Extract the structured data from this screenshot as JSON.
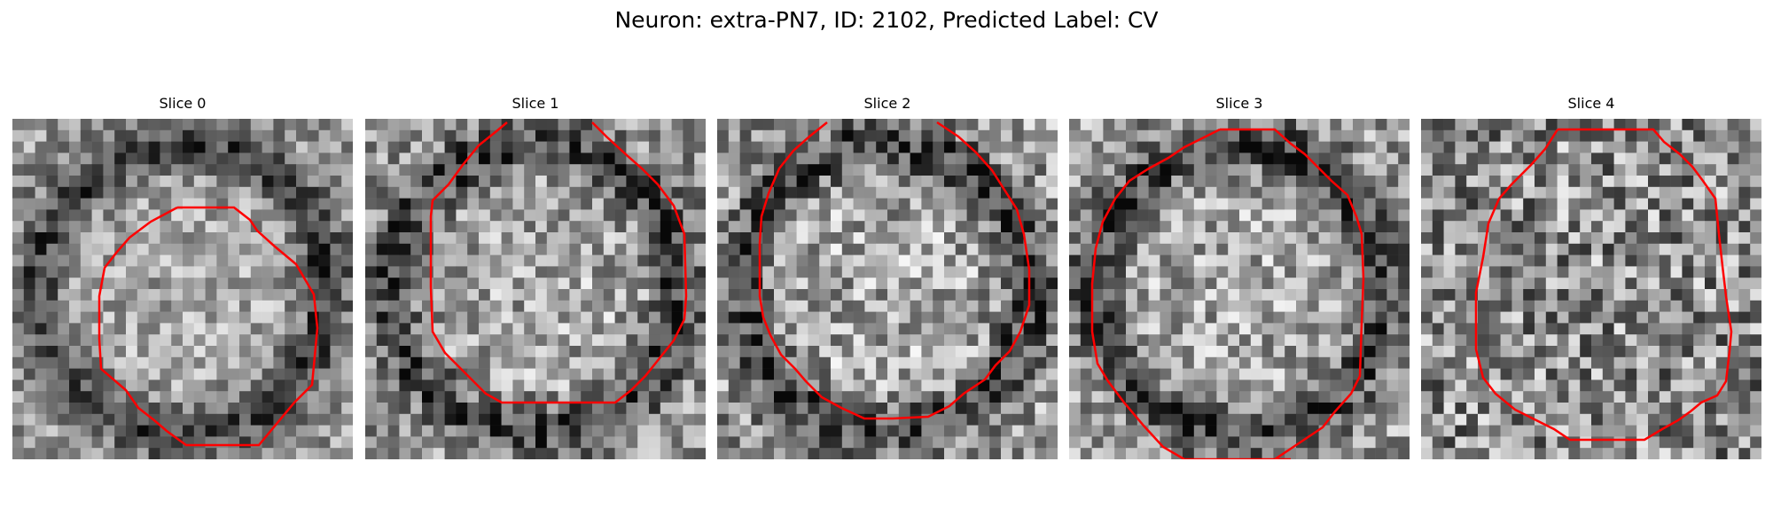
{
  "figure": {
    "title": "Neuron: extra-PN7, ID: 2102, Predicted Label: CV"
  },
  "colors": {
    "contour": "#ff0000",
    "background": "#ffffff"
  },
  "slices": [
    {
      "title": "Slice 0",
      "seed": 11,
      "dark_ring": true,
      "contrast": 0.5
    },
    {
      "title": "Slice 1",
      "seed": 23,
      "dark_ring": true,
      "contrast": 0.6
    },
    {
      "title": "Slice 2",
      "seed": 37,
      "dark_ring": true,
      "contrast": 0.65
    },
    {
      "title": "Slice 3",
      "seed": 41,
      "dark_ring": true,
      "contrast": 0.6
    },
    {
      "title": "Slice 4",
      "seed": 53,
      "dark_ring": false,
      "contrast": 0.75
    }
  ]
}
